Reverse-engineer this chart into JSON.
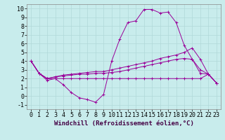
{
  "background_color": "#c8ecec",
  "grid_color": "#b0d8d8",
  "line_color": "#990099",
  "line1_x": [
    0,
    1,
    2,
    3,
    4,
    5,
    6,
    7,
    8,
    9,
    10,
    11,
    12,
    13,
    14,
    15,
    16,
    17,
    18,
    19,
    20,
    21,
    22,
    23
  ],
  "line1_y": [
    4.0,
    2.6,
    1.8,
    2.0,
    1.3,
    0.4,
    -0.2,
    -0.4,
    -0.7,
    0.2,
    4.0,
    6.5,
    8.4,
    8.6,
    9.9,
    9.9,
    9.5,
    9.6,
    8.4,
    5.8,
    4.2,
    2.6,
    2.5,
    1.5
  ],
  "line2_x": [
    0,
    1,
    2,
    3,
    4,
    5,
    6,
    7,
    8,
    9,
    10,
    11,
    12,
    13,
    14,
    15,
    16,
    17,
    18,
    19,
    20,
    21,
    22,
    23
  ],
  "line2_y": [
    4.0,
    2.6,
    2.0,
    2.2,
    2.4,
    2.5,
    2.6,
    2.7,
    2.8,
    2.8,
    3.0,
    3.2,
    3.4,
    3.6,
    3.8,
    4.0,
    4.3,
    4.5,
    4.7,
    5.0,
    5.5,
    4.2,
    2.5,
    1.5
  ],
  "line3_x": [
    0,
    1,
    2,
    3,
    4,
    5,
    6,
    7,
    8,
    9,
    10,
    11,
    12,
    13,
    14,
    15,
    16,
    17,
    18,
    19,
    20,
    21,
    22,
    23
  ],
  "line3_y": [
    4.0,
    2.6,
    2.0,
    2.2,
    2.3,
    2.4,
    2.5,
    2.5,
    2.6,
    2.6,
    2.7,
    2.8,
    3.0,
    3.2,
    3.4,
    3.6,
    3.8,
    4.0,
    4.2,
    4.3,
    4.2,
    3.0,
    2.5,
    1.5
  ],
  "line4_x": [
    0,
    1,
    2,
    3,
    4,
    5,
    6,
    7,
    8,
    9,
    10,
    11,
    12,
    13,
    14,
    15,
    16,
    17,
    18,
    19,
    20,
    21,
    22,
    23
  ],
  "line4_y": [
    4.0,
    2.6,
    2.0,
    2.0,
    2.0,
    2.0,
    2.0,
    2.0,
    2.0,
    2.0,
    2.0,
    2.0,
    2.0,
    2.0,
    2.0,
    2.0,
    2.0,
    2.0,
    2.0,
    2.0,
    2.0,
    2.0,
    2.5,
    1.5
  ],
  "xlabel": "Windchill (Refroidissement éolien,°C)",
  "xlim": [
    -0.5,
    23.5
  ],
  "ylim": [
    -1.5,
    10.5
  ],
  "xticks": [
    0,
    1,
    2,
    3,
    4,
    5,
    6,
    7,
    8,
    9,
    10,
    11,
    12,
    13,
    14,
    15,
    16,
    17,
    18,
    19,
    20,
    21,
    22,
    23
  ],
  "yticks": [
    -1,
    0,
    1,
    2,
    3,
    4,
    5,
    6,
    7,
    8,
    9,
    10
  ],
  "xlabel_fontsize": 6.5,
  "tick_fontsize": 6
}
